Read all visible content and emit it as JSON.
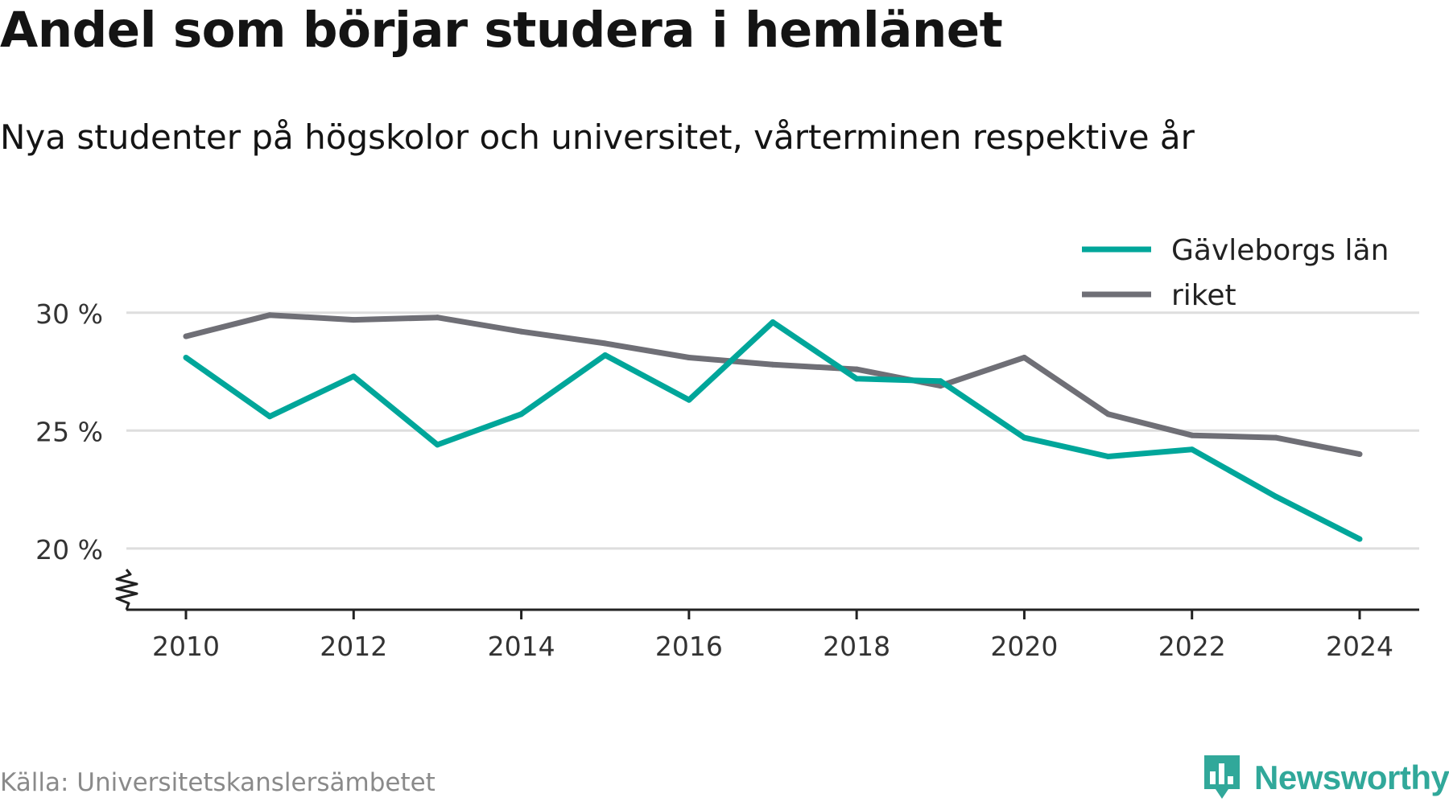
{
  "title": "Andel som börjar studera i hemlänet",
  "subtitle": "Nya studenter på högskolor och universitet, vårterminen respektive år",
  "source": "Källa: Universitetskanslersämbetet",
  "brand": "Newsworthy",
  "colors": {
    "accent": "#00a69a",
    "national": "#6f6f76",
    "grid": "#dedede",
    "axis": "#222222",
    "brand": "#31a89a"
  },
  "icons": {
    "logo": "newsworthy-bar-chart-icon",
    "axis_break": "zigzag-axis-break-icon"
  },
  "chart_data": {
    "type": "line",
    "title": "Andel som börjar studera i hemlänet",
    "subtitle": "Nya studenter på högskolor och universitet, vårterminen respektive år",
    "xlabel": "",
    "ylabel": "",
    "x": [
      2010,
      2011,
      2012,
      2013,
      2014,
      2015,
      2016,
      2017,
      2018,
      2019,
      2020,
      2021,
      2022,
      2023,
      2024
    ],
    "x_ticks": [
      "2010",
      "2012",
      "2014",
      "2016",
      "2018",
      "2020",
      "2022",
      "2024"
    ],
    "y_ticks": [
      {
        "value": 20,
        "label": "20 %"
      },
      {
        "value": 25,
        "label": "25 %"
      },
      {
        "value": 30,
        "label": "30 %"
      }
    ],
    "ylim": [
      17.4,
      30.3
    ],
    "y_axis_break": true,
    "grid": true,
    "legend_position": "top-right",
    "series": [
      {
        "name": "Gävleborgs län",
        "color": "#00a69a",
        "values": [
          28.1,
          25.6,
          27.3,
          24.4,
          25.7,
          28.2,
          26.3,
          29.6,
          27.2,
          27.1,
          24.7,
          23.9,
          24.2,
          22.2,
          20.4
        ]
      },
      {
        "name": "riket",
        "color": "#6f6f76",
        "values": [
          29.0,
          29.9,
          29.7,
          29.8,
          29.2,
          28.7,
          28.1,
          27.8,
          27.6,
          26.9,
          28.1,
          25.7,
          24.8,
          24.7,
          24.0
        ]
      }
    ]
  }
}
